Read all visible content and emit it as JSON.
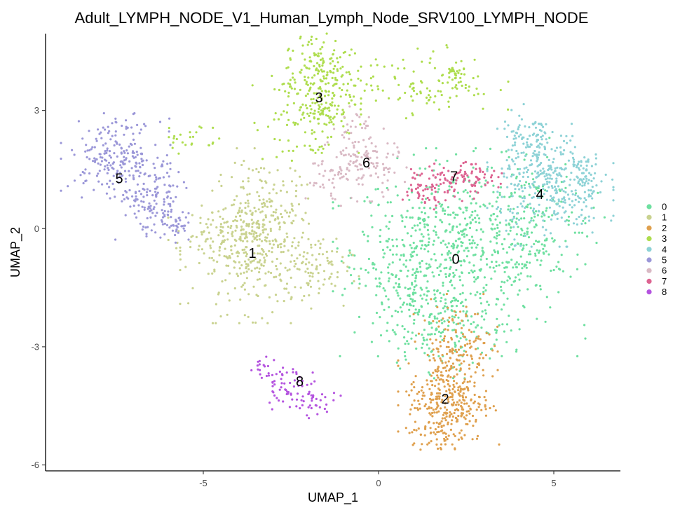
{
  "chart_data": {
    "type": "scatter",
    "title": "Adult_LYMPH_NODE_V1_Human_Lymph_Node_SRV100_LYMPH_NODE",
    "xlabel": "UMAP_1",
    "ylabel": "UMAP_2",
    "xlim": [
      -9.5,
      6.9
    ],
    "ylim": [
      -6.15,
      4.95
    ],
    "x_ticks": [
      -5,
      0,
      5
    ],
    "x_tick_labels": [
      "-5",
      "0",
      "5"
    ],
    "y_ticks": [
      -6,
      -3,
      0,
      3
    ],
    "y_tick_labels": [
      "-6",
      "-3",
      "0",
      "3"
    ],
    "grid": false,
    "legend_position": "right",
    "clusters": [
      {
        "id": "0",
        "label": "0",
        "color": "#6ee0a0",
        "label_pos": [
          2.2,
          -0.8
        ],
        "regions": [
          {
            "cx": 2.3,
            "cy": -0.6,
            "sx": 1.5,
            "sy": 1.1,
            "n": 620
          },
          {
            "cx": 4.3,
            "cy": 0.2,
            "sx": 0.9,
            "sy": 0.9,
            "n": 140
          },
          {
            "cx": 0.8,
            "cy": -1.4,
            "sx": 0.6,
            "sy": 0.9,
            "n": 140
          },
          {
            "cx": 2.0,
            "cy": -2.6,
            "sx": 0.9,
            "sy": 0.5,
            "n": 120
          }
        ]
      },
      {
        "id": "1",
        "label": "1",
        "color": "#c9d28f",
        "label_pos": [
          -3.6,
          -0.65
        ],
        "regions": [
          {
            "cx": -3.5,
            "cy": -0.6,
            "sx": 0.9,
            "sy": 0.75,
            "n": 330
          },
          {
            "cx": -3.3,
            "cy": 0.6,
            "sx": 0.5,
            "sy": 0.6,
            "n": 120
          },
          {
            "cx": -2.0,
            "cy": -1.1,
            "sx": 0.6,
            "sy": 0.4,
            "n": 70
          },
          {
            "cx": -4.8,
            "cy": -0.2,
            "sx": 0.5,
            "sy": 0.3,
            "n": 50
          }
        ]
      },
      {
        "id": "2",
        "label": "2",
        "color": "#dfa04e",
        "label_pos": [
          1.9,
          -4.35
        ],
        "regions": [
          {
            "cx": 2.0,
            "cy": -4.4,
            "sx": 0.6,
            "sy": 0.5,
            "n": 260
          },
          {
            "cx": 2.2,
            "cy": -3.1,
            "sx": 0.5,
            "sy": 0.6,
            "n": 170
          },
          {
            "cx": 1.8,
            "cy": -5.2,
            "sx": 0.3,
            "sy": 0.25,
            "n": 45
          }
        ]
      },
      {
        "id": "3",
        "label": "3",
        "color": "#aedd4e",
        "label_pos": [
          -1.7,
          3.3
        ],
        "regions": [
          {
            "cx": -1.7,
            "cy": 3.6,
            "sx": 0.5,
            "sy": 0.7,
            "n": 260
          },
          {
            "cx": 1.3,
            "cy": 3.7,
            "sx": 1.0,
            "sy": 0.4,
            "n": 110
          },
          {
            "cx": 2.2,
            "cy": 4.0,
            "sx": 0.15,
            "sy": 0.15,
            "n": 25
          },
          {
            "cx": -2.2,
            "cy": 2.8,
            "sx": 0.7,
            "sy": 0.6,
            "n": 60
          },
          {
            "cx": -5.4,
            "cy": 2.3,
            "sx": 0.4,
            "sy": 0.2,
            "n": 25
          }
        ]
      },
      {
        "id": "4",
        "label": "4",
        "color": "#8dd2d6",
        "label_pos": [
          4.6,
          0.85
        ],
        "regions": [
          {
            "cx": 4.9,
            "cy": 1.1,
            "sx": 0.75,
            "sy": 0.65,
            "n": 330
          },
          {
            "cx": 4.3,
            "cy": 2.2,
            "sx": 0.4,
            "sy": 0.4,
            "n": 80
          },
          {
            "cx": 5.8,
            "cy": 1.3,
            "sx": 0.3,
            "sy": 0.3,
            "n": 40
          }
        ]
      },
      {
        "id": "5",
        "label": "5",
        "color": "#9b97d8",
        "label_pos": [
          -7.4,
          1.25
        ],
        "regions": [
          {
            "cx": -7.5,
            "cy": 1.85,
            "sx": 0.65,
            "sy": 0.45,
            "n": 200
          },
          {
            "cx": -6.5,
            "cy": 0.8,
            "sx": 0.45,
            "sy": 0.45,
            "n": 130
          },
          {
            "cx": -5.9,
            "cy": 0.1,
            "sx": 0.3,
            "sy": 0.25,
            "n": 45
          }
        ]
      },
      {
        "id": "6",
        "label": "6",
        "color": "#d9b9c4",
        "label_pos": [
          -0.35,
          1.65
        ],
        "regions": [
          {
            "cx": -0.4,
            "cy": 1.65,
            "sx": 0.5,
            "sy": 0.4,
            "n": 110
          },
          {
            "cx": -1.3,
            "cy": 1.3,
            "sx": 0.4,
            "sy": 0.3,
            "n": 45
          },
          {
            "cx": -0.7,
            "cy": 2.5,
            "sx": 0.25,
            "sy": 0.25,
            "n": 25
          }
        ]
      },
      {
        "id": "7",
        "label": "7",
        "color": "#dd6391",
        "label_pos": [
          2.15,
          1.3
        ],
        "regions": [
          {
            "cx": 2.1,
            "cy": 1.2,
            "sx": 0.55,
            "sy": 0.22,
            "n": 80
          },
          {
            "cx": 1.3,
            "cy": 0.95,
            "sx": 0.35,
            "sy": 0.2,
            "n": 35
          },
          {
            "cx": 2.8,
            "cy": 1.35,
            "sx": 0.3,
            "sy": 0.15,
            "n": 30
          }
        ]
      },
      {
        "id": "8",
        "label": "8",
        "color": "#b453df",
        "label_pos": [
          -2.25,
          -3.9
        ],
        "regions": [
          {
            "cx": -2.5,
            "cy": -4.0,
            "sx": 0.4,
            "sy": 0.25,
            "n": 55
          },
          {
            "cx": -1.8,
            "cy": -4.45,
            "sx": 0.3,
            "sy": 0.15,
            "n": 30
          },
          {
            "cx": -3.2,
            "cy": -3.55,
            "sx": 0.25,
            "sy": 0.15,
            "n": 20
          }
        ]
      }
    ]
  }
}
